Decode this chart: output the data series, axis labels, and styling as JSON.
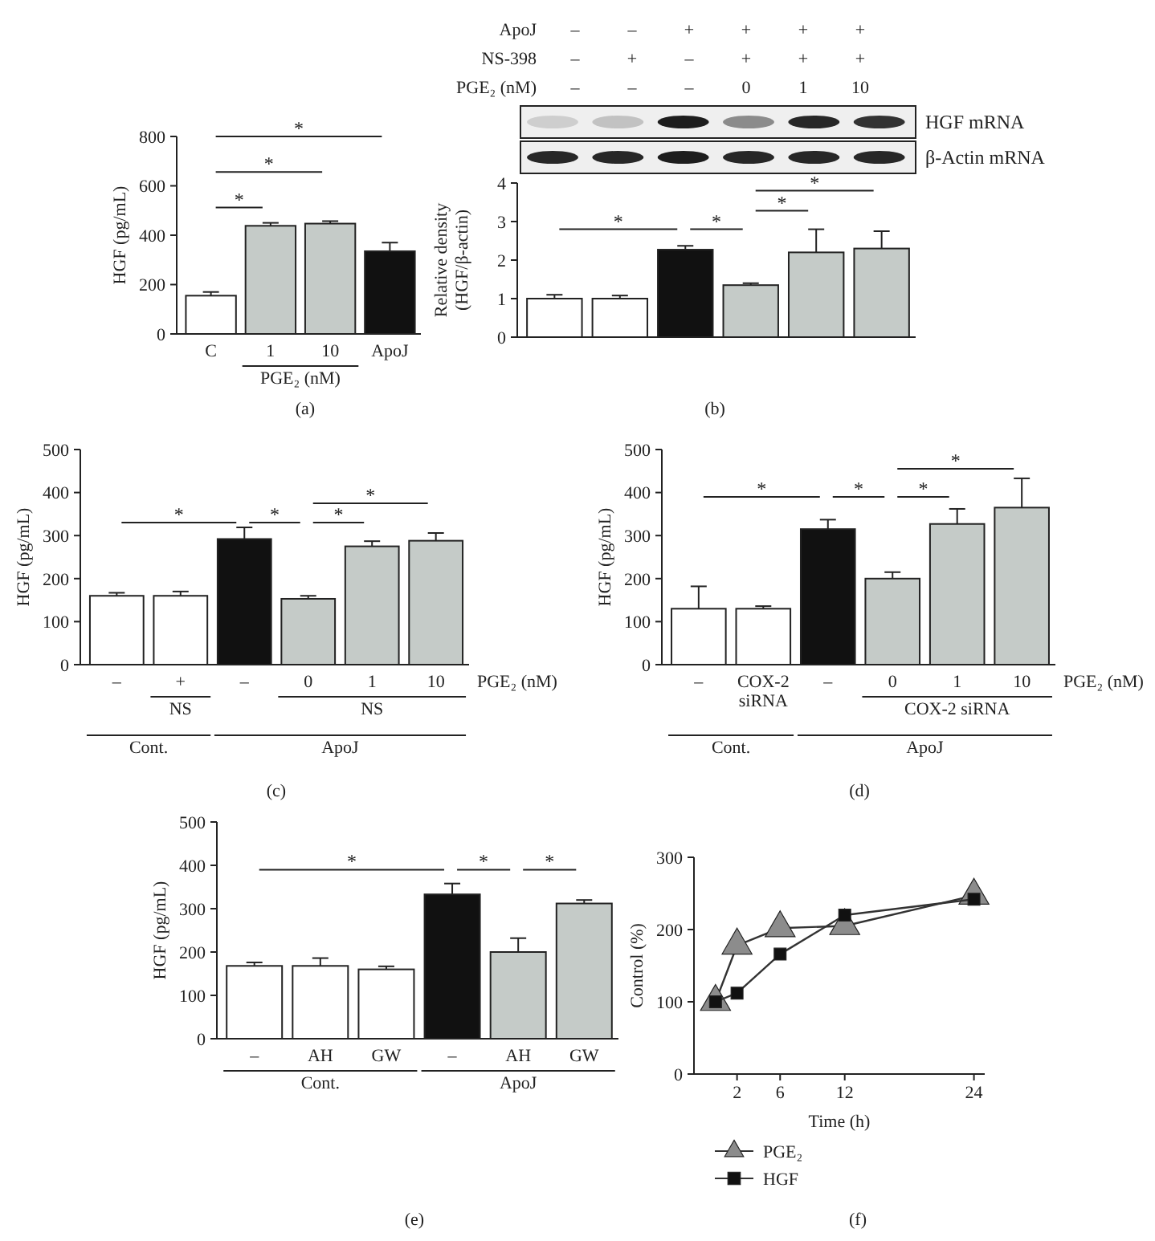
{
  "chart_data": [
    {
      "type": "bar",
      "ylabel": "HGF (pg/mL)",
      "categories": [
        "C",
        "1",
        "10",
        "ApoJ"
      ],
      "values": [
        155,
        438,
        447,
        335
      ],
      "errors": [
        15,
        12,
        10,
        35
      ],
      "colors": [
        "#ffffff",
        "#c5cbc8",
        "#c5cbc8",
        "#111111"
      ],
      "ylim": [
        0,
        800
      ],
      "yticks": [
        0,
        200,
        400,
        600,
        800
      ],
      "annotations": [
        "PGE₂ (nM)",
        "*",
        "*",
        "*",
        "(a)"
      ]
    },
    {
      "type": "bar",
      "ylabel": "Relative density\n(HGF/β-actin)",
      "categories": [
        null,
        null,
        null,
        null,
        null,
        null
      ],
      "values": [
        1.0,
        1.0,
        2.27,
        1.35,
        2.2,
        2.3
      ],
      "errors": [
        0.1,
        0.08,
        0.1,
        0.05,
        0.6,
        0.45
      ],
      "colors": [
        "#ffffff",
        "#ffffff",
        "#111111",
        "#c5cbc8",
        "#c5cbc8",
        "#c5cbc8"
      ],
      "ylim": [
        0,
        4
      ],
      "yticks": [
        0,
        1,
        2,
        3,
        4
      ],
      "annotations": [
        "ApoJ",
        "–",
        "–",
        "+",
        "+",
        "+",
        "+",
        "NS-398",
        "–",
        "+",
        "–",
        "+",
        "+",
        "+",
        "PGE₂ (nM)",
        "–",
        "–",
        "–",
        "0",
        "1",
        "10",
        "HGF mRNA",
        "β-Actin mRNA",
        "*",
        "*",
        "*",
        "*",
        "(b)"
      ]
    },
    {
      "type": "bar",
      "ylabel": "HGF (pg/mL)",
      "categories": [
        "–",
        "+",
        "–",
        "0",
        "1",
        "10"
      ],
      "values": [
        160,
        160,
        292,
        153,
        275,
        288
      ],
      "errors": [
        7,
        10,
        27,
        7,
        12,
        18
      ],
      "colors": [
        "#ffffff",
        "#ffffff",
        "#111111",
        "#c5cbc8",
        "#c5cbc8",
        "#c5cbc8"
      ],
      "ylim": [
        0,
        500
      ],
      "yticks": [
        0,
        100,
        200,
        300,
        400,
        500
      ],
      "annotations": [
        "PGE₂ (nM)",
        "NS",
        "NS",
        "Cont.",
        "ApoJ",
        "*",
        "*",
        "*",
        "*",
        "(c)"
      ]
    },
    {
      "type": "bar",
      "ylabel": "HGF (pg/mL)",
      "categories": [
        "–",
        "COX-2\nsiRNA",
        "–",
        "0",
        "1",
        "10"
      ],
      "values": [
        130,
        130,
        315,
        200,
        327,
        365
      ],
      "errors": [
        52,
        6,
        22,
        15,
        35,
        68
      ],
      "colors": [
        "#ffffff",
        "#ffffff",
        "#111111",
        "#c5cbc8",
        "#c5cbc8",
        "#c5cbc8"
      ],
      "ylim": [
        0,
        500
      ],
      "yticks": [
        0,
        100,
        200,
        300,
        400,
        500
      ],
      "annotations": [
        "PGE₂ (nM)",
        "COX-2 siRNA",
        "Cont.",
        "ApoJ",
        "*",
        "*",
        "*",
        "*",
        "(d)"
      ]
    },
    {
      "type": "bar",
      "ylabel": "HGF (pg/mL)",
      "categories": [
        "–",
        "AH",
        "GW",
        "–",
        "AH",
        "GW"
      ],
      "values": [
        168,
        168,
        160,
        333,
        200,
        312
      ],
      "errors": [
        8,
        18,
        7,
        25,
        32,
        8
      ],
      "colors": [
        "#ffffff",
        "#ffffff",
        "#ffffff",
        "#111111",
        "#c5cbc8",
        "#c5cbc8"
      ],
      "ylim": [
        0,
        500
      ],
      "yticks": [
        0,
        100,
        200,
        300,
        400,
        500
      ],
      "annotations": [
        "Cont.",
        "ApoJ",
        "*",
        "*",
        "*",
        "(e)"
      ]
    },
    {
      "type": "line",
      "xlabel": "Time (h)",
      "ylabel": "Control (%)",
      "x": [
        0,
        2,
        6,
        12,
        24
      ],
      "xlim": [
        -2,
        25
      ],
      "xticks": [
        2,
        6,
        12,
        24
      ],
      "ylim": [
        0,
        300
      ],
      "yticks": [
        0,
        100,
        200,
        300
      ],
      "legend": "bottom",
      "series": [
        {
          "name": "PGE₂",
          "color": "#8c8c8c",
          "marker": "triangle",
          "values": [
            100,
            178,
            202,
            205,
            247
          ]
        },
        {
          "name": "HGF",
          "color": "#111111",
          "marker": "square",
          "values": [
            100,
            112,
            166,
            220,
            242
          ]
        }
      ],
      "annotations": [
        "(f)"
      ]
    }
  ]
}
